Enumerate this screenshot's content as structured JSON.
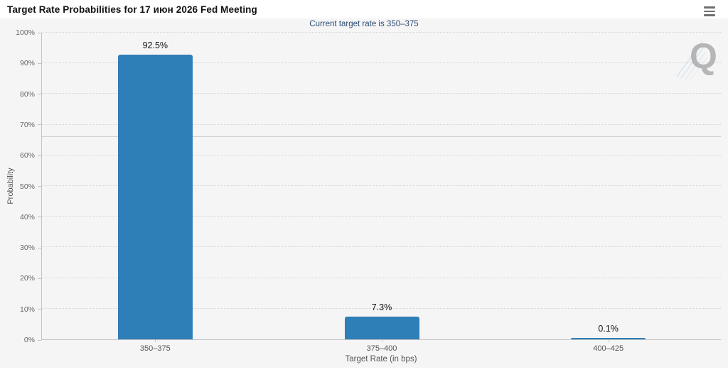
{
  "header": {
    "title": "Target Rate Probabilities for 17 июн 2026 Fed Meeting",
    "menu_icon": "hamburger-menu-icon"
  },
  "chart_data": {
    "type": "bar",
    "title": "Target Rate Probabilities for 17 июн 2026 Fed Meeting",
    "subtitle": "Current target rate is 350–375",
    "categories": [
      "350–375",
      "375–400",
      "400–425"
    ],
    "values": [
      92.5,
      7.3,
      0.1
    ],
    "value_labels": [
      "92.5%",
      "7.3%",
      "0.1%"
    ],
    "xlabel": "Target Rate (in bps)",
    "ylabel": "Probability",
    "ylim": [
      0,
      100
    ],
    "ytick_step": 10,
    "ytick_suffix": "%",
    "reference_line_value": 66,
    "grid": "dotted-horizontal",
    "legend": "none",
    "colors": {
      "bar": "#2E7EB8",
      "grid": "#D5D5D6",
      "axis": "#C3C3C3",
      "reference_line": "#CFCFCF",
      "subtitle_text": "#2B4C73",
      "tick_text": "#666666",
      "value_label_text": "#111111",
      "background": "#F5F5F6",
      "watermark": "#A2A2A4",
      "watermark_lines": "#9FC6D8"
    }
  },
  "watermark": {
    "letter": "Q"
  }
}
